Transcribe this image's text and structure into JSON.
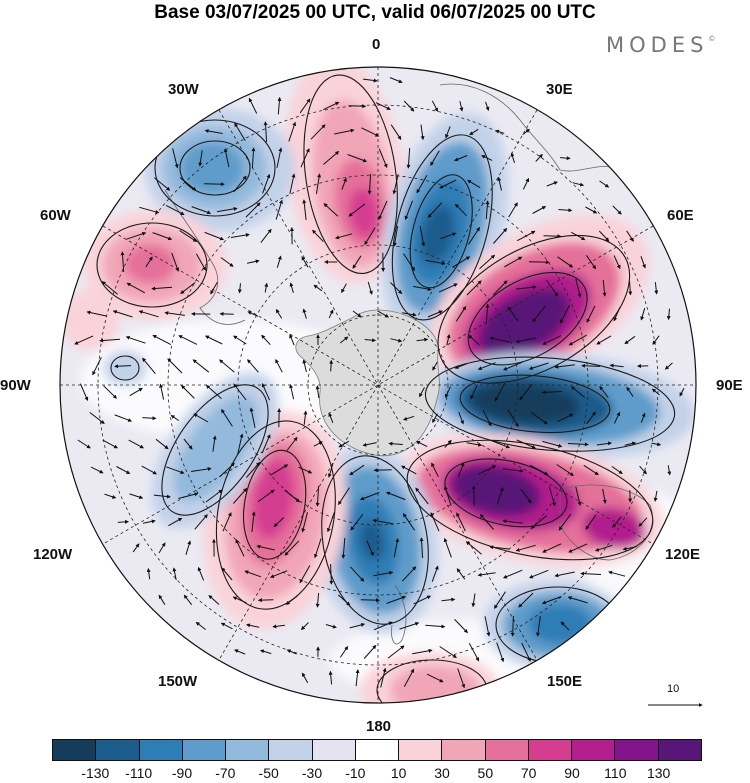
{
  "title": "Base 03/07/2025 00 UTC, valid 06/07/2025 00 UTC",
  "brand": "MODES",
  "brand_mark": "©",
  "longitude_labels": [
    "0",
    "30E",
    "60E",
    "90E",
    "120E",
    "150E",
    "180",
    "150W",
    "120W",
    "90W",
    "60W",
    "30W"
  ],
  "vector_scale_label": "10",
  "colorbar": {
    "ticks": [
      "-130",
      "-110",
      "-90",
      "-70",
      "-50",
      "-30",
      "-10",
      "10",
      "30",
      "50",
      "70",
      "90",
      "110",
      "130"
    ],
    "colors": [
      "#163c5b",
      "#1b5c8c",
      "#2f7db5",
      "#5f9ccb",
      "#93b9dc",
      "#c2d2e9",
      "#e4e3f1",
      "#ffffff",
      "#f9d3d9",
      "#f1a6b8",
      "#e5709a",
      "#d53d90",
      "#b21f8c",
      "#83138a",
      "#581678"
    ]
  }
}
